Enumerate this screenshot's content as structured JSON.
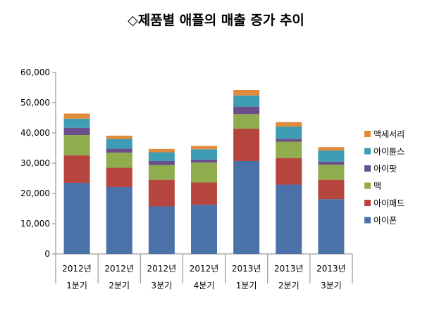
{
  "chart_data": {
    "type": "bar",
    "stacked": true,
    "title": "◇제품별 애플의 매출 증가 추이",
    "categories": [
      [
        "2012년",
        "1분기"
      ],
      [
        "2012년",
        "2분기"
      ],
      [
        "2012년",
        "3분기"
      ],
      [
        "2012년",
        "4분기"
      ],
      [
        "2013년",
        "1분기"
      ],
      [
        "2013년",
        "2분기"
      ],
      [
        "2013년",
        "3분기"
      ]
    ],
    "series": [
      {
        "name": "아이폰",
        "color": "#4a72a9",
        "values": [
          23500,
          22100,
          15700,
          16300,
          30700,
          22900,
          18100
        ]
      },
      {
        "name": "아이패드",
        "color": "#b6443f",
        "values": [
          9100,
          6400,
          8800,
          7300,
          10700,
          8800,
          6400
        ]
      },
      {
        "name": "맥",
        "color": "#8fad4c",
        "values": [
          6700,
          5000,
          4900,
          6600,
          4800,
          5400,
          5000
        ]
      },
      {
        "name": "아이팟",
        "color": "#6a4f8a",
        "values": [
          2400,
          1300,
          1300,
          1000,
          2500,
          1000,
          1000
        ]
      },
      {
        "name": "아이튠스",
        "color": "#3e9db5",
        "values": [
          3000,
          3200,
          2900,
          3400,
          3700,
          4000,
          3700
        ]
      },
      {
        "name": "액세서리",
        "color": "#e08a3b",
        "values": [
          1700,
          1100,
          1100,
          1100,
          1800,
          1500,
          1100
        ]
      }
    ],
    "ylim": [
      0,
      60000
    ],
    "yticks": [
      0,
      10000,
      20000,
      30000,
      40000,
      50000,
      60000
    ],
    "ytick_labels": [
      "0",
      "10,000",
      "20,000",
      "30,000",
      "40,000",
      "50,000",
      "60,000"
    ],
    "legend_position": "right",
    "legend_order": [
      "액세서리",
      "아이튠스",
      "아이팟",
      "맥",
      "아이패드",
      "아이폰"
    ],
    "grid": false
  }
}
